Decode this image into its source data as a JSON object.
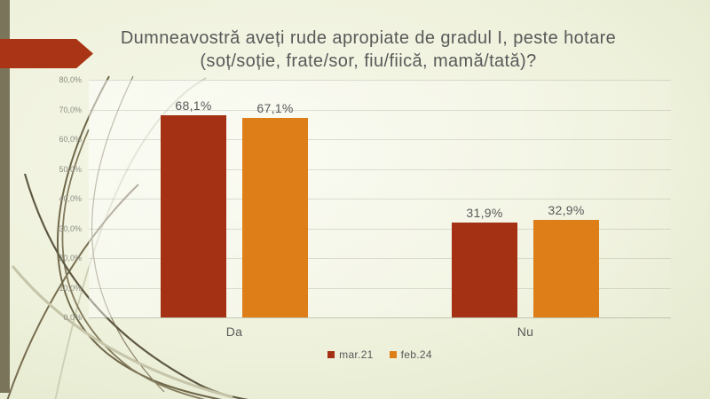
{
  "slide": {
    "title": "Dumneavostră aveți rude apropiate de gradul I, peste hotare (soț/soție, frate/sor, fiu/fiică, mamă/tată)?"
  },
  "chart_data": {
    "type": "bar",
    "title": "Dumneavostră aveți rude apropiate de gradul I, peste hotare (soț/soție, frate/sor, fiu/fiică, mamă/tată)?",
    "categories": [
      "Da",
      "Nu"
    ],
    "series": [
      {
        "name": "mar.21",
        "color": "#A43113",
        "values": [
          68.1,
          31.9
        ],
        "data_labels": [
          "68,1%",
          "31,9%"
        ]
      },
      {
        "name": "feb.24",
        "color": "#DE7E18",
        "values": [
          67.1,
          32.9
        ],
        "data_labels": [
          "67,1%",
          "32,9%"
        ]
      }
    ],
    "xlabel": "",
    "ylabel": "",
    "ylim": [
      0,
      80
    ],
    "ytick_step": 10,
    "ytick_labels": [
      "0,0%",
      "10,0%",
      "20,0%",
      "30,0%",
      "40,0%",
      "50,0%",
      "60,0%",
      "70,0%",
      "80,0%"
    ],
    "grid": true,
    "legend_position": "bottom",
    "decimal_separator": ","
  },
  "theme": {
    "accent_red": "#A43113",
    "accent_orange": "#DE7E18",
    "strip_olive": "#7A745A",
    "arrow_red": "#AA3516",
    "text_gray": "#595959",
    "tick_gray": "#8a8b80"
  }
}
